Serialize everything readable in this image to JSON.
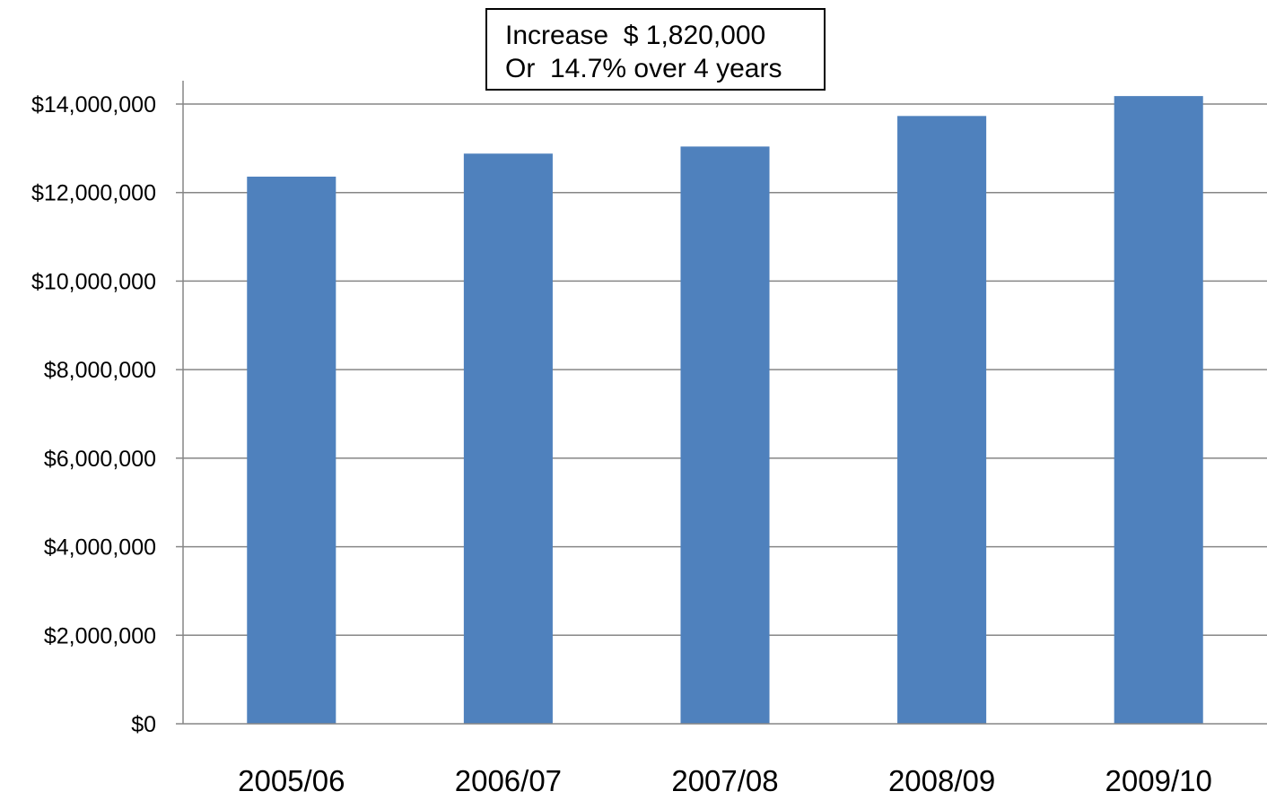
{
  "chart_data": {
    "type": "bar",
    "categories": [
      "2005/06",
      "2006/07",
      "2007/08",
      "2008/09",
      "2009/10"
    ],
    "values": [
      12360000,
      12880000,
      13040000,
      13730000,
      14180000
    ],
    "ylim": [
      0,
      14000000
    ],
    "yticks": [
      0,
      2000000,
      4000000,
      6000000,
      8000000,
      10000000,
      12000000,
      14000000
    ],
    "ytick_labels": [
      "$0",
      "$2,000,000",
      "$4,000,000",
      "$6,000,000",
      "$8,000,000",
      "$10,000,000",
      "$12,000,000",
      "$14,000,000"
    ],
    "grid": true,
    "legend": "none",
    "bar_color": "#4F81BD",
    "annotation": {
      "line1": "Increase  $ 1,820,000",
      "line2": "Or  14.7% over 4 years"
    }
  }
}
